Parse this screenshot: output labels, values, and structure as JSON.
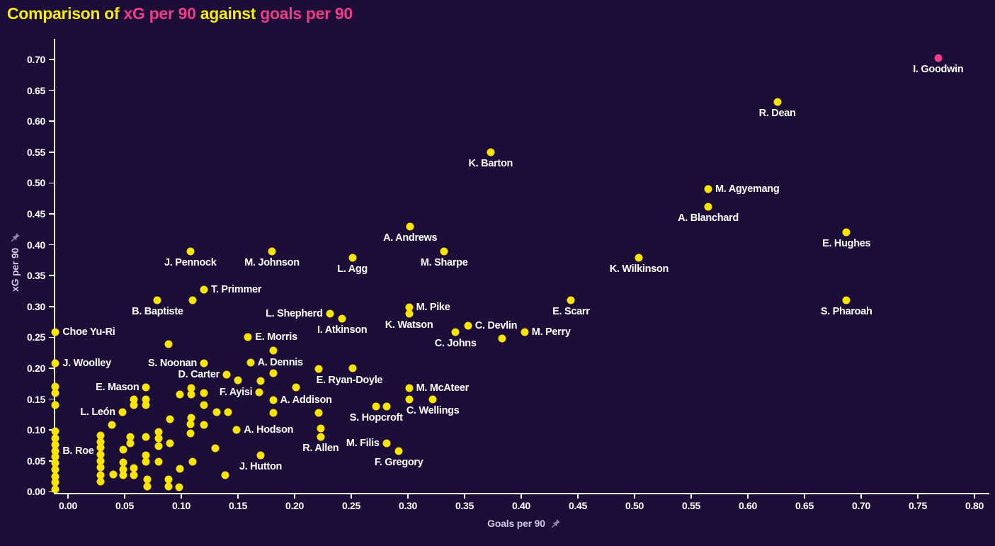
{
  "title": {
    "segments": [
      {
        "text": "Comparison of ",
        "color": "yellow"
      },
      {
        "text": "xG per 90",
        "color": "pink"
      },
      {
        "text": " against ",
        "color": "yellow"
      },
      {
        "text": "goals per 90",
        "color": "pink"
      }
    ],
    "full_text": "Comparison of xG per 90 against goals per 90"
  },
  "colors": {
    "background": "#1c0e38",
    "title_yellow": "#f5ec0f",
    "title_pink": "#ee3d87",
    "point_yellow": "#f9e402",
    "point_highlight_pink": "#ee3d87",
    "axis_line": "#ffffff",
    "tick_text": "#ffffff",
    "point_label_text": "#ffffff",
    "axis_title_text": "#cdc7e0",
    "pin_icon": "#8d86a8"
  },
  "chart_data": {
    "type": "scatter",
    "title": "Comparison of xG per 90 against goals per 90",
    "xlabel": "Goals per 90",
    "ylabel": "xG per 90",
    "grid": false,
    "legend": "none",
    "xlim": [
      -0.017,
      0.818
    ],
    "ylim": [
      -0.003,
      0.733
    ],
    "x_ticks": [
      "0.00",
      "0.05",
      "0.10",
      "0.15",
      "0.20",
      "0.25",
      "0.30",
      "0.35",
      "0.40",
      "0.45",
      "0.50",
      "0.55",
      "0.60",
      "0.65",
      "0.70",
      "0.75",
      "0.80"
    ],
    "y_ticks": [
      "0.00",
      "0.05",
      "0.10",
      "0.15",
      "0.20",
      "0.25",
      "0.30",
      "0.35",
      "0.40",
      "0.45",
      "0.50",
      "0.55",
      "0.60",
      "0.65",
      "0.70"
    ],
    "points": [
      {
        "name": "I. Goodwin",
        "x": 0.768,
        "y": 0.702,
        "label_pos": "below",
        "highlight": true
      },
      {
        "name": "R. Dean",
        "x": 0.626,
        "y": 0.631,
        "label_pos": "below"
      },
      {
        "name": "K. Barton",
        "x": 0.373,
        "y": 0.55,
        "label_pos": "below"
      },
      {
        "name": "M. Agyemang",
        "x": 0.565,
        "y": 0.49,
        "label_pos": "right"
      },
      {
        "name": "A. Blanchard",
        "x": 0.565,
        "y": 0.461,
        "label_pos": "below"
      },
      {
        "name": "E. Hughes",
        "x": 0.687,
        "y": 0.42,
        "label_pos": "below"
      },
      {
        "name": "A. Andrews",
        "x": 0.302,
        "y": 0.429,
        "label_pos": "below"
      },
      {
        "name": "M. Sharpe",
        "x": 0.332,
        "y": 0.389,
        "label_pos": "below"
      },
      {
        "name": "M. Johnson",
        "x": 0.18,
        "y": 0.389,
        "label_pos": "below"
      },
      {
        "name": "J. Pennock",
        "x": 0.108,
        "y": 0.389,
        "label_pos": "below"
      },
      {
        "name": "L. Agg",
        "x": 0.251,
        "y": 0.379,
        "label_pos": "below"
      },
      {
        "name": "K. Wilkinson",
        "x": 0.504,
        "y": 0.379,
        "label_pos": "below"
      },
      {
        "name": "T. Primmer",
        "x": 0.12,
        "y": 0.327,
        "label_pos": "right"
      },
      {
        "name": "B. Baptiste",
        "x": 0.079,
        "y": 0.31,
        "label_pos": "below"
      },
      {
        "name": "S. Pharoah",
        "x": 0.687,
        "y": 0.31,
        "label_pos": "below"
      },
      {
        "name": "E. Scarr",
        "x": 0.444,
        "y": 0.31,
        "label_pos": "below"
      },
      {
        "name": "M. Pike",
        "x": 0.301,
        "y": 0.299,
        "label_pos": "right"
      },
      {
        "name": "K. Watson",
        "x": 0.301,
        "y": 0.288,
        "label_pos": "below"
      },
      {
        "name": "L. Shepherd",
        "x": 0.231,
        "y": 0.288,
        "label_pos": "left"
      },
      {
        "name": "I. Atkinson",
        "x": 0.242,
        "y": 0.28,
        "label_pos": "below"
      },
      {
        "name": "C. Devlin",
        "x": 0.353,
        "y": 0.269,
        "label_pos": "right"
      },
      {
        "name": "C. Johns",
        "x": 0.342,
        "y": 0.258,
        "label_pos": "below"
      },
      {
        "name": "M. Perry",
        "x": 0.403,
        "y": 0.258,
        "label_pos": "right"
      },
      {
        "name": "Choe Yu-Ri",
        "x": -0.011,
        "y": 0.258,
        "label_pos": "right"
      },
      {
        "name": "E. Morris",
        "x": 0.159,
        "y": 0.25,
        "label_pos": "right"
      },
      {
        "name": "A. Dennis",
        "x": 0.161,
        "y": 0.209,
        "label_pos": "right"
      },
      {
        "name": "S. Noonan",
        "x": 0.12,
        "y": 0.208,
        "label_pos": "left"
      },
      {
        "name": "J. Woolley",
        "x": -0.011,
        "y": 0.208,
        "label_pos": "right"
      },
      {
        "name": "E. Ryan-Doyle",
        "x": 0.221,
        "y": 0.199,
        "label_pos": "below-right"
      },
      {
        "name": "D. Carter",
        "x": 0.14,
        "y": 0.19,
        "label_pos": "left"
      },
      {
        "name": "M. McAteer",
        "x": 0.301,
        "y": 0.168,
        "label_pos": "right"
      },
      {
        "name": "E. Mason",
        "x": 0.069,
        "y": 0.169,
        "label_pos": "left"
      },
      {
        "name": "F. Ayisi",
        "x": 0.169,
        "y": 0.161,
        "label_pos": "left"
      },
      {
        "name": "A. Addison",
        "x": 0.181,
        "y": 0.148,
        "label_pos": "right"
      },
      {
        "name": "C. Wellings",
        "x": 0.322,
        "y": 0.15,
        "label_pos": "below"
      },
      {
        "name": "S. Hopcroft",
        "x": 0.272,
        "y": 0.138,
        "label_pos": "below"
      },
      {
        "name": "L. León",
        "x": 0.048,
        "y": 0.129,
        "label_pos": "left"
      },
      {
        "name": "A. Hodson",
        "x": 0.149,
        "y": 0.1,
        "label_pos": "right"
      },
      {
        "name": "R. Allen",
        "x": 0.223,
        "y": 0.089,
        "label_pos": "below"
      },
      {
        "name": "M. Filis",
        "x": 0.281,
        "y": 0.078,
        "label_pos": "left"
      },
      {
        "name": "F. Gregory",
        "x": 0.292,
        "y": 0.066,
        "label_pos": "below"
      },
      {
        "name": "B. Roe",
        "x": -0.011,
        "y": 0.066,
        "label_pos": "right"
      },
      {
        "name": "J. Hutton",
        "x": 0.17,
        "y": 0.059,
        "label_pos": "below"
      },
      {
        "x": 0.11,
        "y": 0.31
      },
      {
        "x": 0.383,
        "y": 0.248
      },
      {
        "x": 0.089,
        "y": 0.239
      },
      {
        "x": 0.181,
        "y": 0.229
      },
      {
        "x": 0.251,
        "y": 0.2
      },
      {
        "x": 0.181,
        "y": 0.192
      },
      {
        "x": 0.17,
        "y": 0.179
      },
      {
        "x": 0.15,
        "y": 0.18
      },
      {
        "x": 0.201,
        "y": 0.169
      },
      {
        "x": 0.301,
        "y": 0.15
      },
      {
        "x": 0.281,
        "y": 0.138
      },
      {
        "x": 0.223,
        "y": 0.103
      },
      {
        "x": 0.109,
        "y": 0.168
      },
      {
        "x": 0.109,
        "y": 0.157
      },
      {
        "x": 0.12,
        "y": 0.16
      },
      {
        "x": 0.12,
        "y": 0.14
      },
      {
        "x": 0.099,
        "y": 0.158
      },
      {
        "x": 0.069,
        "y": 0.15
      },
      {
        "x": 0.069,
        "y": 0.14
      },
      {
        "x": 0.058,
        "y": 0.15
      },
      {
        "x": 0.058,
        "y": 0.14
      },
      {
        "x": 0.131,
        "y": 0.129
      },
      {
        "x": 0.141,
        "y": 0.129
      },
      {
        "x": 0.181,
        "y": 0.128
      },
      {
        "x": 0.221,
        "y": 0.128
      },
      {
        "x": 0.09,
        "y": 0.118
      },
      {
        "x": 0.039,
        "y": 0.108
      },
      {
        "x": 0.109,
        "y": 0.12
      },
      {
        "x": 0.108,
        "y": 0.109
      },
      {
        "x": 0.12,
        "y": 0.108
      },
      {
        "x": 0.08,
        "y": 0.097
      },
      {
        "x": 0.08,
        "y": 0.087
      },
      {
        "x": 0.08,
        "y": 0.074
      },
      {
        "x": 0.029,
        "y": 0.091
      },
      {
        "x": 0.029,
        "y": 0.081
      },
      {
        "x": 0.029,
        "y": 0.072
      },
      {
        "x": 0.029,
        "y": 0.06
      },
      {
        "x": 0.029,
        "y": 0.05
      },
      {
        "x": 0.029,
        "y": 0.039
      },
      {
        "x": 0.029,
        "y": 0.027
      },
      {
        "x": 0.029,
        "y": 0.016
      },
      {
        "x": 0.055,
        "y": 0.089
      },
      {
        "x": 0.055,
        "y": 0.078
      },
      {
        "x": 0.069,
        "y": 0.089
      },
      {
        "x": 0.108,
        "y": 0.095
      },
      {
        "x": 0.09,
        "y": 0.078
      },
      {
        "x": 0.049,
        "y": 0.068
      },
      {
        "x": 0.04,
        "y": 0.028
      },
      {
        "x": 0.049,
        "y": 0.048
      },
      {
        "x": 0.049,
        "y": 0.036
      },
      {
        "x": 0.049,
        "y": 0.027
      },
      {
        "x": 0.058,
        "y": 0.038
      },
      {
        "x": 0.058,
        "y": 0.027
      },
      {
        "x": 0.069,
        "y": 0.059
      },
      {
        "x": 0.069,
        "y": 0.049
      },
      {
        "x": 0.07,
        "y": 0.02
      },
      {
        "x": 0.07,
        "y": 0.008
      },
      {
        "x": 0.08,
        "y": 0.049
      },
      {
        "x": 0.089,
        "y": 0.02
      },
      {
        "x": 0.089,
        "y": 0.008
      },
      {
        "x": 0.099,
        "y": 0.037
      },
      {
        "x": 0.098,
        "y": 0.007
      },
      {
        "x": 0.11,
        "y": 0.049
      },
      {
        "x": 0.13,
        "y": 0.07
      },
      {
        "x": 0.139,
        "y": 0.027
      },
      {
        "x": -0.011,
        "y": 0.17
      },
      {
        "x": -0.011,
        "y": 0.16
      },
      {
        "x": -0.011,
        "y": 0.14
      },
      {
        "x": -0.011,
        "y": 0.098
      },
      {
        "x": -0.011,
        "y": 0.086
      },
      {
        "x": -0.011,
        "y": 0.076
      },
      {
        "x": -0.011,
        "y": 0.057
      },
      {
        "x": -0.011,
        "y": 0.046
      },
      {
        "x": -0.011,
        "y": 0.036
      },
      {
        "x": -0.011,
        "y": 0.025
      },
      {
        "x": -0.011,
        "y": 0.015
      },
      {
        "x": -0.011,
        "y": 0.004
      }
    ]
  }
}
